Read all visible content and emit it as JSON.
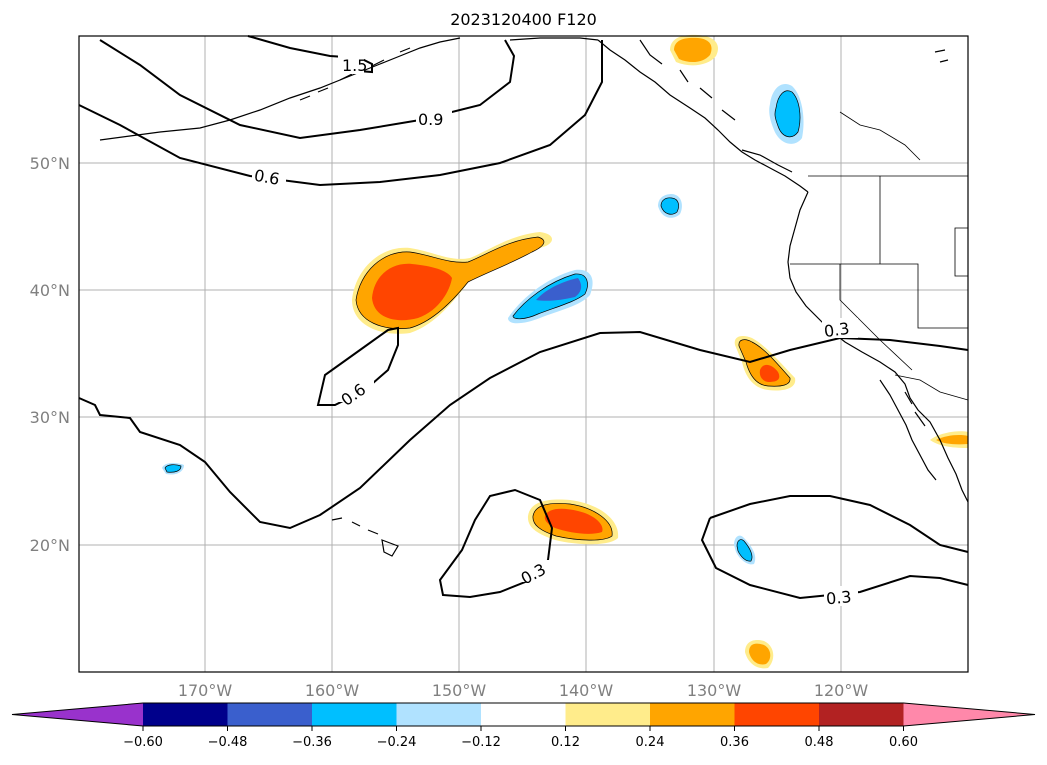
{
  "title": "2023120400 F120",
  "lat_labels": [
    "50°N",
    "40°N",
    "30°N",
    "20°N"
  ],
  "lon_labels": [
    "170°W",
    "160°W",
    "150°W",
    "140°W",
    "130°W",
    "120°W"
  ],
  "contour_labels": [
    "1.5",
    "0.9",
    "0.6",
    "0.6",
    "0.3",
    "0.3",
    "0.3"
  ],
  "colorbar": {
    "ticks": [
      "−0.60",
      "−0.48",
      "−0.36",
      "−0.24",
      "−0.12",
      "0.12",
      "0.24",
      "0.36",
      "0.48",
      "0.60"
    ],
    "colors": [
      "#9932cc",
      "#00008b",
      "#3a5fcd",
      "#00bfff",
      "#b0e2ff",
      "#ffffff",
      "#ffec8b",
      "#ffa500",
      "#ff4500",
      "#b22222",
      "#ff88aa"
    ]
  }
}
